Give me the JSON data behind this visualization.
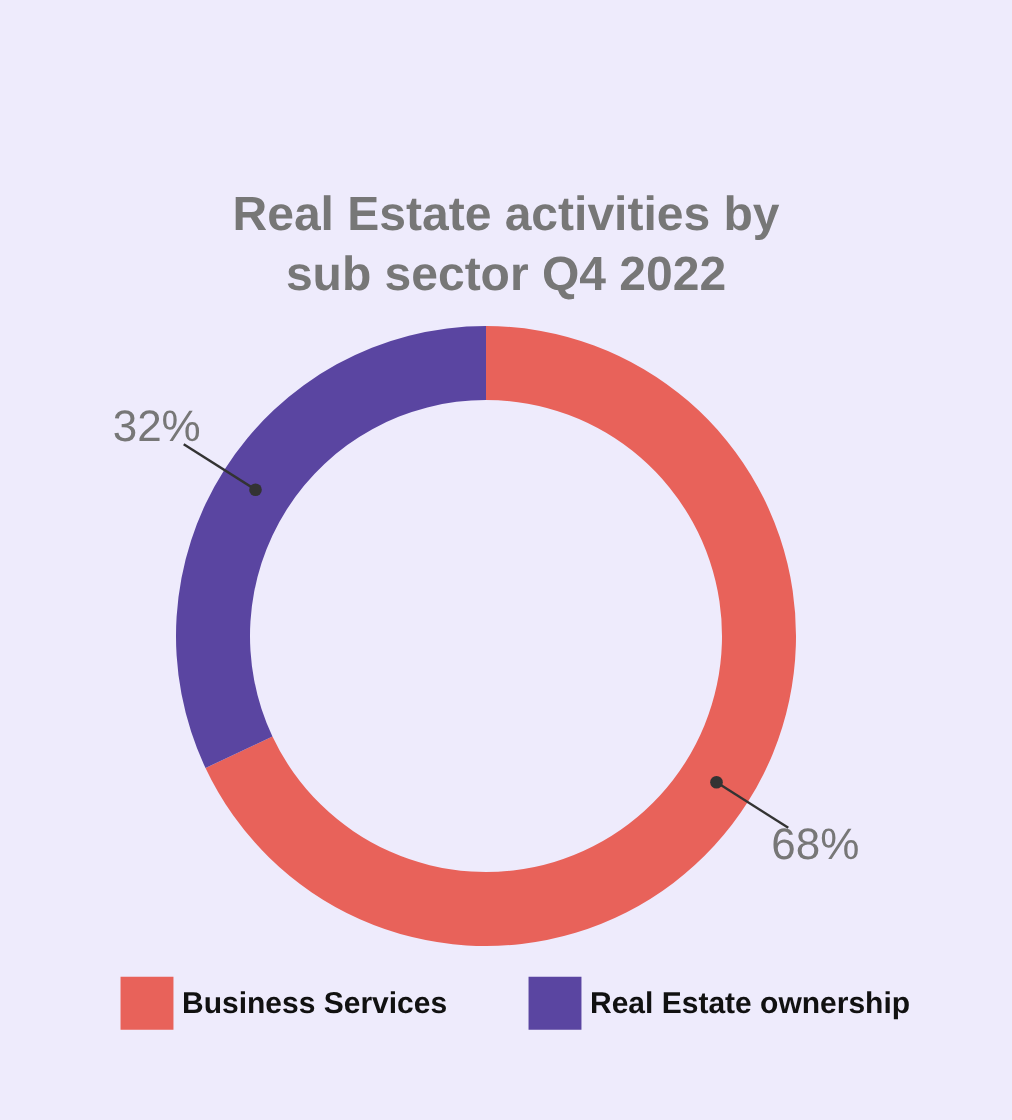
{
  "chart_data": {
    "type": "donut",
    "title": "Real Estate activities by sub sector Q4 2022",
    "categories": [
      "Business Services",
      "Real Estate ownership"
    ],
    "values": [
      68,
      32
    ],
    "colors": [
      "#e8625a",
      "#5a45a1"
    ],
    "value_labels": [
      "68%",
      "32%"
    ],
    "legend": "bottom"
  }
}
